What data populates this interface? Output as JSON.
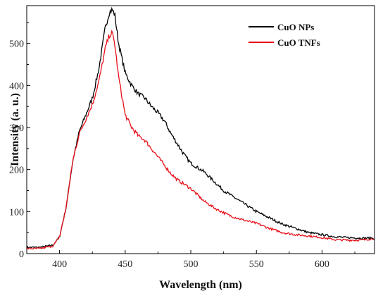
{
  "chart_data": {
    "type": "line",
    "title": "",
    "xlabel": "Wavelength (nm)",
    "ylabel": "Intensity (a. u.)",
    "xlim": [
      375,
      640
    ],
    "ylim": [
      0,
      590
    ],
    "x_ticks": [
      400,
      450,
      500,
      550,
      600
    ],
    "y_ticks": [
      0,
      100,
      200,
      300,
      400,
      500
    ],
    "grid": false,
    "legend_position": "top-right",
    "series": [
      {
        "name": "CuO NPs",
        "color": "#000000",
        "x": [
          375,
          385,
          395,
          400,
          405,
          410,
          415,
          420,
          425,
          430,
          435,
          438,
          440,
          442,
          445,
          450,
          455,
          460,
          465,
          470,
          475,
          480,
          485,
          490,
          495,
          500,
          505,
          510,
          515,
          520,
          525,
          530,
          540,
          550,
          560,
          570,
          580,
          590,
          600,
          610,
          620,
          630,
          640
        ],
        "y": [
          15,
          15,
          20,
          40,
          110,
          220,
          290,
          330,
          370,
          440,
          540,
          575,
          580,
          570,
          500,
          430,
          400,
          380,
          370,
          350,
          335,
          315,
          285,
          260,
          235,
          215,
          205,
          195,
          180,
          165,
          150,
          140,
          120,
          100,
          85,
          70,
          60,
          50,
          45,
          40,
          38,
          37,
          37
        ]
      },
      {
        "name": "CuO TNFs",
        "color": "#e8101a",
        "x": [
          375,
          385,
          395,
          400,
          405,
          410,
          415,
          420,
          425,
          430,
          435,
          438,
          440,
          442,
          445,
          450,
          455,
          460,
          465,
          470,
          475,
          480,
          485,
          490,
          495,
          500,
          505,
          510,
          515,
          520,
          530,
          540,
          550,
          560,
          570,
          580,
          590,
          600,
          610,
          620,
          630,
          640
        ],
        "y": [
          12,
          12,
          18,
          40,
          110,
          220,
          285,
          320,
          355,
          410,
          490,
          520,
          525,
          500,
          420,
          330,
          300,
          280,
          270,
          250,
          230,
          210,
          190,
          175,
          165,
          155,
          140,
          125,
          115,
          105,
          90,
          80,
          72,
          60,
          50,
          45,
          42,
          38,
          33,
          32,
          32,
          36
        ]
      }
    ]
  }
}
